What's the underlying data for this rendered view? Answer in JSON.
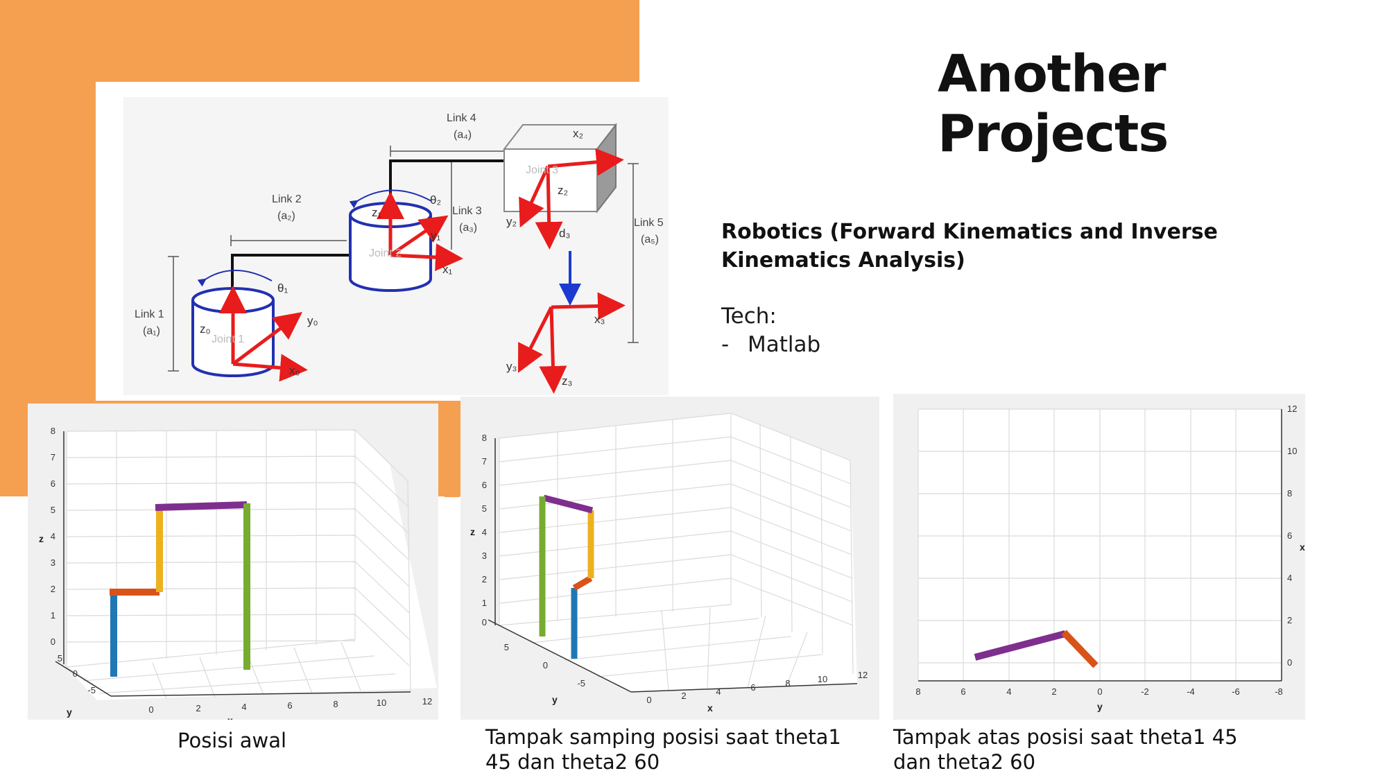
{
  "slide": {
    "title_line1": "Another",
    "title_line2": "Projects",
    "project_name": "Robotics (Forward Kinematics and Inverse Kinematics Analysis)",
    "tech_label": "Tech:",
    "tech_dash": "-",
    "tech_item": "Matlab"
  },
  "diagram": {
    "link1": "Link 1",
    "a1": "(a₁)",
    "link2": "Link 2",
    "a2": "(a₂)",
    "link3": "Link 3",
    "a3": "(a₃)",
    "link4": "Link 4",
    "a4": "(a₄)",
    "link5": "Link 5",
    "a5": "(a₅)",
    "joint1": "Joint 1",
    "joint2": "Joint 2",
    "joint3": "Joint 3",
    "theta1": "θ₁",
    "theta2": "θ₂",
    "d3": "d₃",
    "x0": "x₀",
    "y0": "y₀",
    "z0": "z₀",
    "x1": "x₁",
    "y1": "y₁",
    "z1": "z₁",
    "x2": "x₂",
    "y2": "y₂",
    "z2": "z₂",
    "x3": "x₃",
    "y3": "y₃",
    "z3": "z₃",
    "colors": {
      "arrow": "#e81c1c",
      "cylinder": "#2230b0",
      "d3_arrow": "#1c3ad0",
      "link": "#111111"
    }
  },
  "plots": {
    "plot1": {
      "z_label": "z",
      "y_label": "y",
      "x_label": "x",
      "z_ticks": [
        "8",
        "7",
        "6",
        "5",
        "4",
        "3",
        "2",
        "1",
        "0"
      ],
      "y_ticks": [
        "5",
        "0",
        "-5"
      ],
      "x_ticks": [
        "0",
        "2",
        "4",
        "6",
        "8",
        "10",
        "12"
      ]
    },
    "plot2": {
      "z_label": "z",
      "y_label": "y",
      "x_label": "x",
      "z_ticks": [
        "8",
        "7",
        "6",
        "5",
        "4",
        "3",
        "2",
        "1",
        "0"
      ],
      "y_ticks": [
        "5",
        "0",
        "-5"
      ],
      "x_ticks": [
        "0",
        "2",
        "4",
        "6",
        "8",
        "10",
        "12"
      ]
    },
    "plot3": {
      "x_label": "x",
      "y_label": "y",
      "x_ticks": [
        "12",
        "10",
        "8",
        "6",
        "4",
        "2",
        "0"
      ],
      "y_ticks": [
        "8",
        "6",
        "4",
        "2",
        "0",
        "-2",
        "-4",
        "-6",
        "-8"
      ]
    },
    "link_colors": {
      "blue": "#1f77b4",
      "orange": "#d95319",
      "yellow": "#edb120",
      "purple": "#7e2f8e",
      "green": "#77ac30"
    }
  },
  "captions": {
    "plot1": "Posisi awal",
    "plot2": "Tampak samping posisi saat theta1 45 dan theta2 60",
    "plot3": "Tampak atas posisi saat theta1 45 dan theta2 60"
  }
}
